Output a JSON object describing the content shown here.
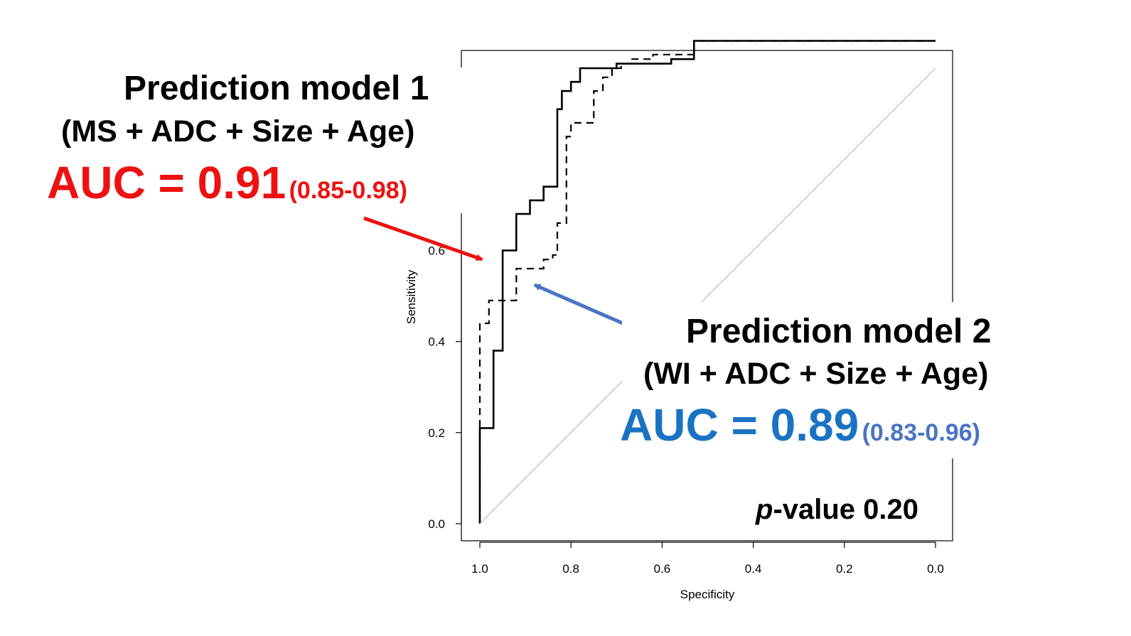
{
  "chart_data": {
    "type": "line",
    "title": "",
    "xlabel": "Specificity",
    "ylabel": "Sensitivity",
    "xlim": [
      1.0,
      0.0
    ],
    "ylim": [
      0.0,
      1.0
    ],
    "x_reversed": true,
    "xticks": [
      "1.0",
      "0.8",
      "0.6",
      "0.4",
      "0.2",
      "0.0"
    ],
    "yticks": [
      "0.0",
      "0.2",
      "0.4",
      "0.6"
    ],
    "grid": false,
    "series": [
      {
        "name": "",
        "style": "solid",
        "specificity": [
          1.0,
          1.0,
          0.99,
          0.97,
          0.97,
          0.95,
          0.95,
          0.92,
          0.92,
          0.89,
          0.89,
          0.86,
          0.86,
          0.83,
          0.83,
          0.82,
          0.82,
          0.8,
          0.8,
          0.78,
          0.78,
          0.7,
          0.7,
          0.58,
          0.58,
          0.53,
          0.53,
          0.0
        ],
        "sensitivity": [
          0.0,
          0.21,
          0.21,
          0.21,
          0.38,
          0.38,
          0.6,
          0.6,
          0.68,
          0.68,
          0.71,
          0.71,
          0.74,
          0.74,
          0.91,
          0.91,
          0.95,
          0.95,
          0.97,
          0.97,
          1.0,
          1.0,
          1.01,
          1.01,
          1.02,
          1.02,
          1.06,
          1.06
        ]
      },
      {
        "name": "",
        "style": "dashed",
        "specificity": [
          1.0,
          1.0,
          0.98,
          0.98,
          0.96,
          0.96,
          0.92,
          0.92,
          0.91,
          0.91,
          0.86,
          0.86,
          0.84,
          0.84,
          0.83,
          0.83,
          0.81,
          0.81,
          0.8,
          0.8,
          0.78,
          0.78,
          0.75,
          0.75,
          0.73,
          0.73,
          0.71,
          0.71,
          0.69,
          0.69,
          0.67,
          0.67,
          0.62,
          0.62,
          0.53,
          0.53,
          0.0
        ],
        "sensitivity": [
          0.0,
          0.44,
          0.44,
          0.49,
          0.49,
          0.49,
          0.49,
          0.56,
          0.56,
          0.56,
          0.56,
          0.58,
          0.58,
          0.59,
          0.59,
          0.66,
          0.66,
          0.85,
          0.85,
          0.88,
          0.88,
          0.88,
          0.88,
          0.95,
          0.95,
          0.98,
          0.98,
          1.0,
          1.0,
          1.01,
          1.01,
          1.02,
          1.02,
          1.03,
          1.03,
          1.06,
          1.06
        ]
      },
      {
        "name": "",
        "style": "reference",
        "specificity": [
          1.0,
          0.0
        ],
        "sensitivity": [
          0.0,
          1.0
        ]
      }
    ],
    "annotations": {
      "model1_title": "Prediction model 1",
      "model1_vars": "(MS + ADC + Size + Age)",
      "model1_auc": "AUC = 0.91",
      "model1_ci": "(0.85-0.98)",
      "model2_title": "Prediction model 2",
      "model2_vars": "(WI + ADC + Size + Age)",
      "model2_auc": "AUC = 0.89",
      "model2_ci": "(0.83-0.96)",
      "pvalue_prefix": "p",
      "pvalue_rest": "-value 0.20"
    },
    "colors": {
      "model1": "#ee1111",
      "model2_auc": "#1a73c2",
      "model2_ci": "#4a74c4",
      "model2_arrow": "#4a74c4",
      "curve": "#000000",
      "reference": "#bbbbbb"
    }
  }
}
